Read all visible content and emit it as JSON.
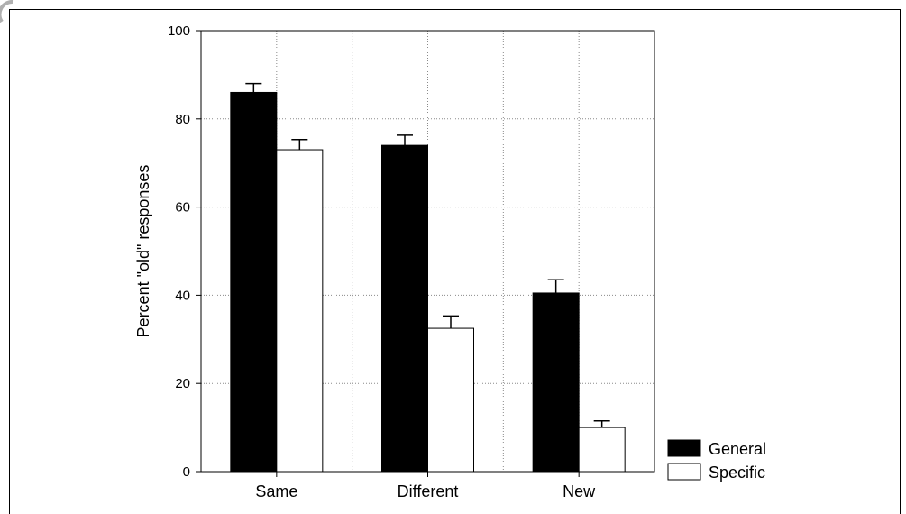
{
  "chart_data": {
    "type": "bar",
    "categories": [
      "Same",
      "Different",
      "New"
    ],
    "series": [
      {
        "name": "General",
        "values": [
          86,
          74,
          40.5
        ],
        "errors": [
          2,
          2.3,
          3
        ],
        "color": "#000000"
      },
      {
        "name": "Specific",
        "values": [
          73,
          32.5,
          10
        ],
        "errors": [
          2.3,
          2.8,
          1.5
        ],
        "color": "#ffffff"
      }
    ],
    "ylabel": "Percent \"old\" responses",
    "xlabel": "",
    "ylim": [
      0,
      100
    ],
    "yticks": [
      "0",
      "20",
      "40",
      "60",
      "80",
      "100"
    ],
    "grid": true,
    "legend_position": "bottom-right"
  }
}
